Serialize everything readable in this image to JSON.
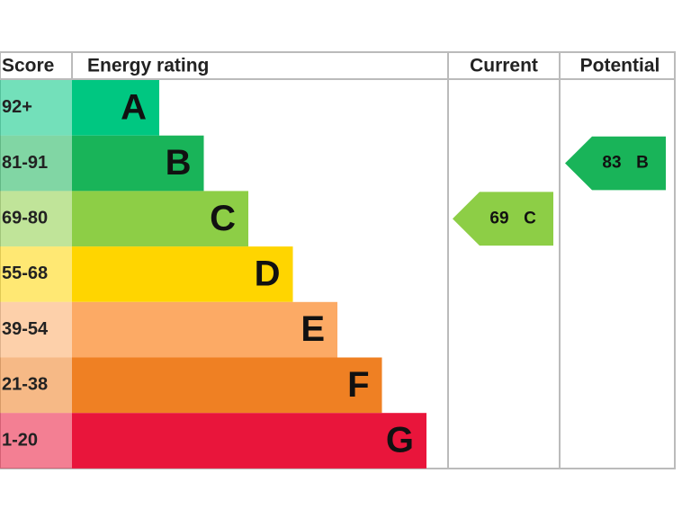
{
  "headers": {
    "score": "Score",
    "rating": "Energy rating",
    "current": "Current",
    "potential": "Potential"
  },
  "bands": [
    {
      "score": "92+",
      "letter": "A",
      "color": "#00c781"
    },
    {
      "score": "81-91",
      "letter": "B",
      "color": "#19b459"
    },
    {
      "score": "69-80",
      "letter": "C",
      "color": "#8dce46"
    },
    {
      "score": "55-68",
      "letter": "D",
      "color": "#ffd500"
    },
    {
      "score": "39-54",
      "letter": "E",
      "color": "#fcaa65"
    },
    {
      "score": "21-38",
      "letter": "F",
      "color": "#ef8023"
    },
    {
      "score": "1-20",
      "letter": "G",
      "color": "#e9153b"
    }
  ],
  "current": {
    "score": 69,
    "rating": "C"
  },
  "potential": {
    "score": 83,
    "rating": "B"
  }
}
